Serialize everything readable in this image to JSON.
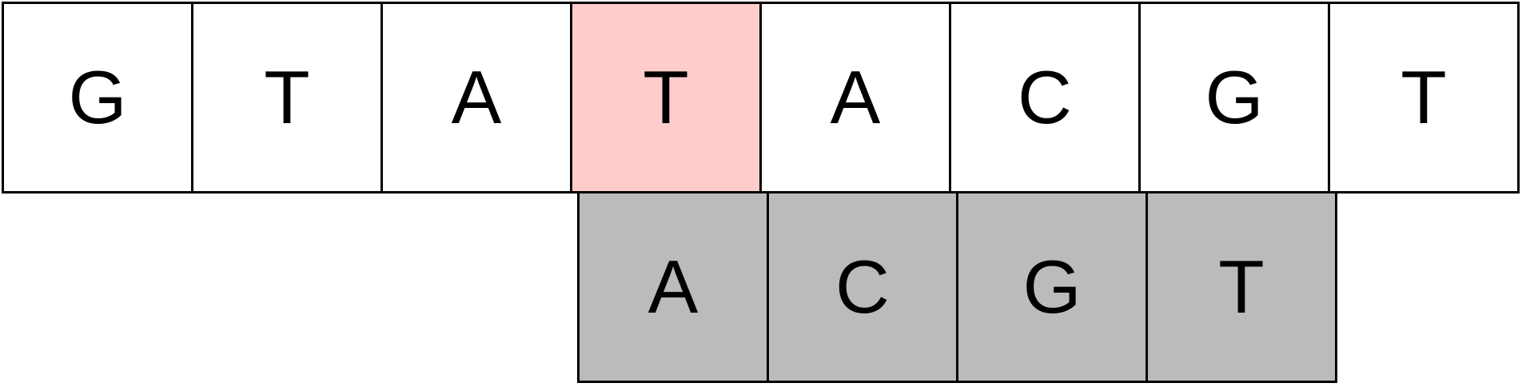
{
  "colors": {
    "grid_line": "#000000",
    "text_cell_background": "#ffffff",
    "mismatch_highlight": "#ffcccc",
    "pattern_cell_background": "#bbbbbb"
  },
  "text_sequence": [
    "G",
    "T",
    "A",
    "T",
    "A",
    "C",
    "G",
    "T"
  ],
  "highlighted_text_index": 3,
  "pattern_sequence": [
    "A",
    "C",
    "G",
    "T"
  ],
  "pattern_alignment_offset": 3
}
